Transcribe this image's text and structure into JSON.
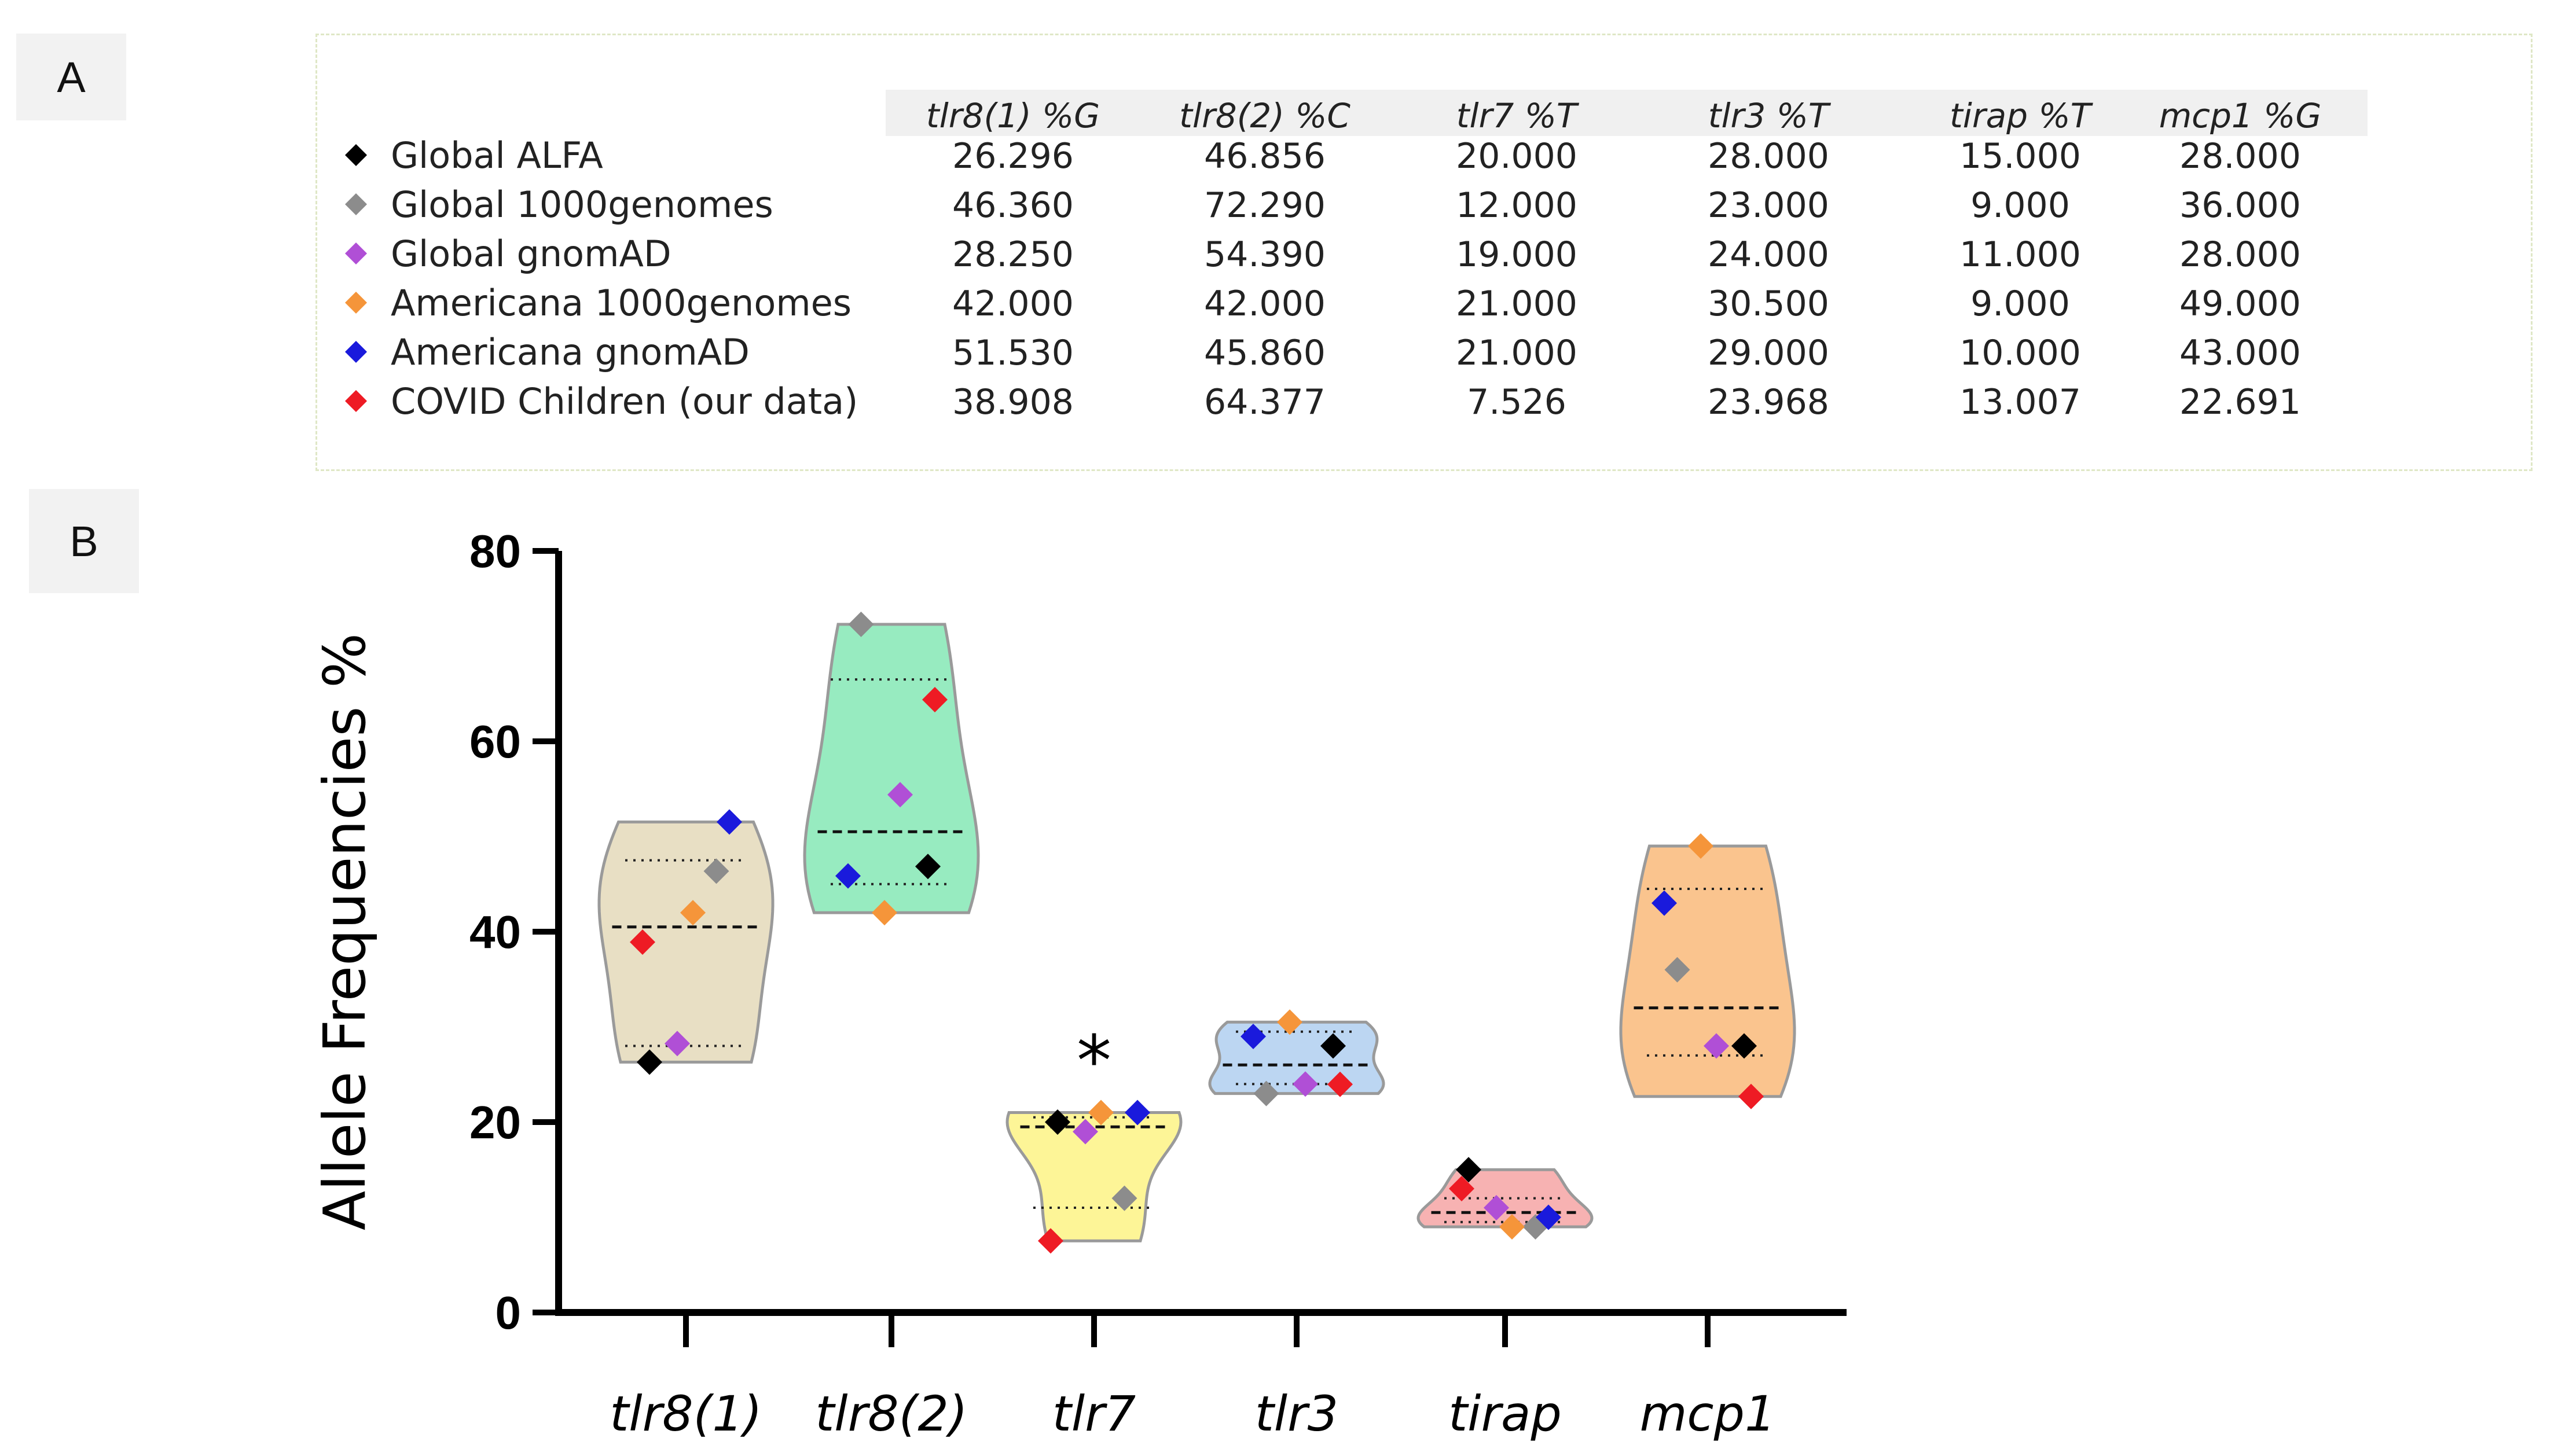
{
  "panel_labels": {
    "a": "A",
    "b": "B"
  },
  "table": {
    "columns": [
      "tlr8(1) %G",
      "tlr8(2) %C",
      "tlr7 %T",
      "tlr3 %T",
      "tirap %T",
      "mcp1 %G"
    ],
    "rows": [
      {
        "name": "Global ALFA",
        "color": "#000000",
        "values": [
          "26.296",
          "46.856",
          "20.000",
          "28.000",
          "15.000",
          "28.000"
        ]
      },
      {
        "name": "Global 1000genomes",
        "color": "#8c8c8c",
        "values": [
          "46.360",
          "72.290",
          "12.000",
          "23.000",
          "9.000",
          "36.000"
        ]
      },
      {
        "name": "Global gnomAD",
        "color": "#b04fd6",
        "values": [
          "28.250",
          "54.390",
          "19.000",
          "24.000",
          "11.000",
          "28.000"
        ]
      },
      {
        "name": "Americana  1000genomes",
        "color": "#f5953a",
        "values": [
          "42.000",
          "42.000",
          "21.000",
          "30.500",
          "9.000",
          "49.000"
        ]
      },
      {
        "name": "Americana  gnomAD",
        "color": "#1a1adc",
        "values": [
          "51.530",
          "45.860",
          "21.000",
          "29.000",
          "10.000",
          "43.000"
        ]
      },
      {
        "name": "COVID Children  (our data)",
        "color": "#ee1b24",
        "values": [
          "38.908",
          "64.377",
          "7.526",
          "23.968",
          "13.007",
          "22.691"
        ]
      }
    ]
  },
  "chart_data": {
    "type": "violin",
    "ylabel": "Allele Frequencies %",
    "xlabel": "",
    "ylim": [
      0,
      80
    ],
    "yticks": [
      "0",
      "20",
      "40",
      "60",
      "80"
    ],
    "categories": [
      "tlr8(1)",
      "tlr8(2)",
      "tlr7",
      "tlr3",
      "tirap",
      "mcp1"
    ],
    "annotation": {
      "text": "*",
      "category": "tlr7"
    },
    "category_fill": [
      "#e8dfc4",
      "#97ebc0",
      "#fdf597",
      "#bcd6f2",
      "#f7b2b2",
      "#fac48e"
    ],
    "series": [
      {
        "name": "Global ALFA",
        "color": "#000000",
        "values": [
          26.296,
          46.856,
          20.0,
          28.0,
          15.0,
          28.0
        ]
      },
      {
        "name": "Global 1000genomes",
        "color": "#8c8c8c",
        "values": [
          46.36,
          72.29,
          12.0,
          23.0,
          9.0,
          36.0
        ]
      },
      {
        "name": "Global gnomAD",
        "color": "#b04fd6",
        "values": [
          28.25,
          54.39,
          19.0,
          24.0,
          11.0,
          28.0
        ]
      },
      {
        "name": "Americana  1000genomes",
        "color": "#f5953a",
        "values": [
          42.0,
          42.0,
          21.0,
          30.5,
          9.0,
          49.0
        ]
      },
      {
        "name": "Americana  gnomAD",
        "color": "#1a1adc",
        "values": [
          51.53,
          45.86,
          21.0,
          29.0,
          10.0,
          43.0
        ]
      },
      {
        "name": "COVID Children  (our data)",
        "color": "#ee1b24",
        "values": [
          38.908,
          64.377,
          7.526,
          23.968,
          13.007,
          22.691
        ]
      }
    ],
    "medians": [
      40.5,
      50.5,
      19.5,
      26.0,
      10.5,
      32.0
    ],
    "quartiles": [
      [
        28.0,
        47.5
      ],
      [
        45.0,
        66.5
      ],
      [
        11.0,
        20.5
      ],
      [
        24.0,
        29.5
      ],
      [
        9.5,
        12.0
      ],
      [
        27.0,
        44.5
      ]
    ]
  }
}
